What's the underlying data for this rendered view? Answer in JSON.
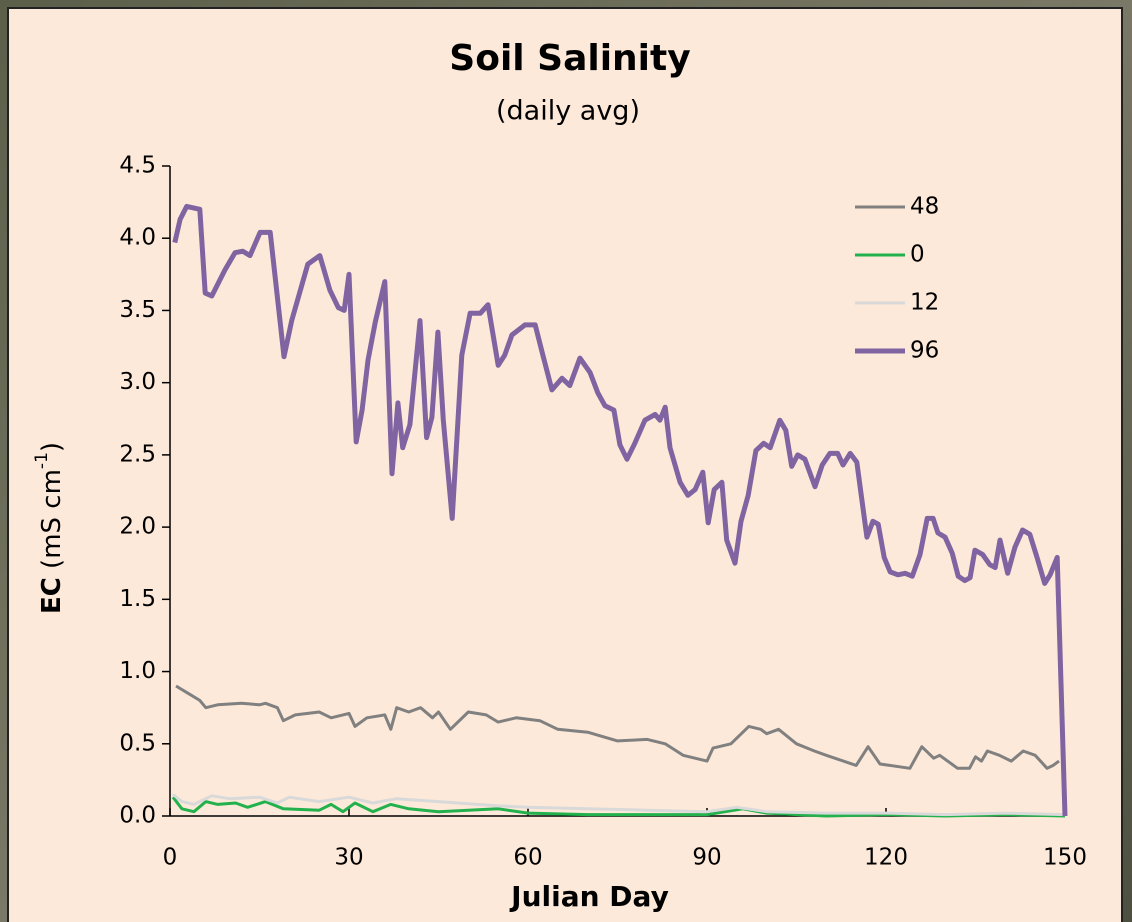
{
  "chart_data": {
    "type": "line",
    "title": "Soil Salinity",
    "subtitle": "(daily avg)",
    "xlabel": "Julian Day",
    "ylabel_parts": [
      "EC",
      " (mS cm",
      "-1",
      ")"
    ],
    "xlim": [
      0,
      150
    ],
    "xticks": [
      0,
      30,
      60,
      90,
      120,
      150
    ],
    "ylim": [
      0,
      4.5
    ],
    "yticks": [
      {
        "value": 0,
        "label": "0.0"
      },
      0.5,
      {
        "value": 1,
        "label": "1.0"
      },
      1.5,
      {
        "value": 2,
        "label": "2.0"
      },
      2.5,
      {
        "value": 3,
        "label": "3.0"
      },
      3.5,
      {
        "value": 4,
        "label": "4.0"
      },
      4.5
    ],
    "legend": "upper right",
    "series": [
      {
        "name": "48",
        "color": "#808080",
        "x": [
          1,
          3,
          5,
          6,
          8,
          12,
          15,
          16,
          18,
          19,
          21,
          25,
          27,
          30,
          31,
          33,
          36,
          37,
          38,
          40,
          42,
          44,
          45,
          47,
          50,
          53,
          55,
          58,
          62,
          65,
          70,
          75,
          80,
          83,
          86,
          90,
          91,
          94,
          97,
          99,
          100,
          102,
          105,
          108,
          110,
          115,
          117,
          119,
          124,
          126,
          128,
          129,
          132,
          134,
          135,
          136,
          137,
          139,
          141,
          143,
          145,
          147,
          148,
          149
        ],
        "values": [
          0.9,
          0.85,
          0.8,
          0.75,
          0.77,
          0.78,
          0.77,
          0.78,
          0.75,
          0.66,
          0.7,
          0.72,
          0.68,
          0.71,
          0.62,
          0.68,
          0.7,
          0.6,
          0.75,
          0.72,
          0.75,
          0.68,
          0.72,
          0.6,
          0.72,
          0.7,
          0.65,
          0.68,
          0.66,
          0.6,
          0.58,
          0.52,
          0.53,
          0.5,
          0.42,
          0.38,
          0.47,
          0.5,
          0.62,
          0.6,
          0.57,
          0.6,
          0.5,
          0.45,
          0.42,
          0.35,
          0.48,
          0.36,
          0.33,
          0.48,
          0.4,
          0.42,
          0.33,
          0.33,
          0.41,
          0.38,
          0.45,
          0.42,
          0.38,
          0.45,
          0.42,
          0.33,
          0.35,
          0.38
        ]
      },
      {
        "name": "0",
        "color": "#22b14c",
        "x": [
          0.5,
          2,
          4,
          6,
          8,
          11,
          13,
          16,
          19,
          25,
          27,
          29,
          31,
          34,
          37,
          40,
          45,
          55,
          60,
          70,
          90,
          96,
          100,
          110,
          120,
          130,
          140,
          150
        ],
        "values": [
          0.13,
          0.05,
          0.03,
          0.1,
          0.08,
          0.09,
          0.06,
          0.1,
          0.05,
          0.04,
          0.08,
          0.03,
          0.09,
          0.03,
          0.08,
          0.05,
          0.03,
          0.05,
          0.02,
          0.01,
          0.01,
          0.05,
          0.02,
          0,
          0.01,
          0,
          0.01,
          0
        ]
      },
      {
        "name": "12",
        "color": "#d9d9d9",
        "x": [
          0.5,
          2,
          4,
          7,
          10,
          15,
          18,
          20,
          25,
          30,
          34,
          38,
          45,
          55,
          60,
          70,
          80,
          90,
          95,
          100,
          110,
          120,
          130,
          140,
          150
        ],
        "values": [
          0.15,
          0.1,
          0.08,
          0.14,
          0.12,
          0.13,
          0.09,
          0.13,
          0.1,
          0.13,
          0.09,
          0.12,
          0.1,
          0.07,
          0.06,
          0.05,
          0.04,
          0.03,
          0.06,
          0.03,
          0.02,
          0.02,
          0.01,
          0.02,
          0.01
        ]
      },
      {
        "name": "96",
        "color": "#8064a2",
        "x": [
          0.8,
          1.7,
          2.8,
          5,
          5.9,
          7,
          9.2,
          10.9,
          12.2,
          13.4,
          15.1,
          16.8,
          19.1,
          20.4,
          23.1,
          25.1,
          26.8,
          28.2,
          29.2,
          30,
          31.2,
          32.2,
          33.2,
          34.4,
          36,
          37.2,
          38.2,
          39,
          40.2,
          41.9,
          43,
          43.9,
          44.9,
          45.8,
          47.3,
          48.9,
          50.3,
          52,
          53.3,
          55,
          56.1,
          57.3,
          59.5,
          61.2,
          62.5,
          64,
          65.7,
          67,
          68.7,
          70.4,
          71.7,
          72.9,
          74.4,
          75.4,
          76.6,
          77.9,
          79.6,
          81.3,
          82.1,
          83,
          83.8,
          85.5,
          86.8,
          88,
          89.3,
          90.2,
          91.2,
          92.5,
          93.3,
          94.7,
          95.7,
          96.9,
          98.2,
          99.5,
          100.6,
          102.2,
          103.2,
          104.2,
          105.2,
          106.4,
          108.1,
          109.3,
          110.6,
          111.9,
          112.8,
          114,
          115.1,
          116.8,
          117.8,
          118.7,
          119.7,
          120.7,
          122,
          123.2,
          124.4,
          125.7,
          126.9,
          127.9,
          128.7,
          129.9,
          131.1,
          132.1,
          133.2,
          134.1,
          134.9,
          136.2,
          137.4,
          138.3,
          139.1,
          140.4,
          141.6,
          142.9,
          144.1,
          145.3,
          146.6,
          147.5,
          148.7,
          150
        ],
        "values": [
          3.97,
          4.13,
          4.22,
          4.2,
          3.62,
          3.6,
          3.78,
          3.9,
          3.91,
          3.88,
          4.04,
          4.04,
          3.18,
          3.43,
          3.82,
          3.88,
          3.64,
          3.52,
          3.5,
          3.75,
          2.59,
          2.81,
          3.16,
          3.42,
          3.7,
          2.37,
          2.86,
          2.55,
          2.71,
          3.43,
          2.62,
          2.76,
          3.35,
          2.74,
          2.06,
          3.19,
          3.48,
          3.48,
          3.54,
          3.12,
          3.19,
          3.33,
          3.4,
          3.4,
          3.19,
          2.95,
          3.03,
          2.98,
          3.17,
          3.07,
          2.93,
          2.84,
          2.81,
          2.57,
          2.47,
          2.58,
          2.74,
          2.78,
          2.74,
          2.83,
          2.55,
          2.31,
          2.22,
          2.26,
          2.38,
          2.03,
          2.26,
          2.31,
          1.91,
          1.75,
          2.04,
          2.22,
          2.53,
          2.58,
          2.55,
          2.74,
          2.67,
          2.42,
          2.5,
          2.47,
          2.28,
          2.43,
          2.51,
          2.51,
          2.43,
          2.51,
          2.45,
          1.93,
          2.04,
          2.02,
          1.79,
          1.69,
          1.67,
          1.68,
          1.66,
          1.81,
          2.06,
          2.06,
          1.96,
          1.93,
          1.82,
          1.66,
          1.63,
          1.65,
          1.84,
          1.81,
          1.74,
          1.72,
          1.91,
          1.68,
          1.86,
          1.98,
          1.95,
          1.79,
          1.61,
          1.67,
          1.79,
          0
        ]
      }
    ]
  }
}
